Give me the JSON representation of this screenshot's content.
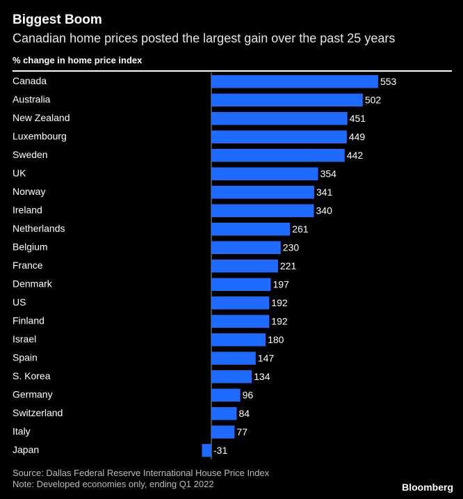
{
  "header": {
    "title": "Biggest Boom",
    "subtitle": "Canadian home prices posted the largest gain over the past 25 years",
    "axis_label": "% change in home price index"
  },
  "footer": {
    "source": "Source: Dallas Federal Reserve International House Price Index",
    "note": "Note: Developed economies only, ending Q1 2022",
    "brand": "Bloomberg"
  },
  "colors": {
    "bar": "#1f6bff",
    "background": "#000000",
    "text": "#ffffff"
  },
  "chart_data": {
    "type": "bar",
    "orientation": "horizontal",
    "title": "Biggest Boom",
    "subtitle": "Canadian home prices posted the largest gain over the past 25 years",
    "xlabel": "% change in home price index",
    "categories": [
      "Canada",
      "Australia",
      "New Zealand",
      "Luxembourg",
      "Sweden",
      "UK",
      "Norway",
      "Ireland",
      "Netherlands",
      "Belgium",
      "France",
      "Denmark",
      "US",
      "Finland",
      "Israel",
      "Spain",
      "S. Korea",
      "Germany",
      "Switzerland",
      "Italy",
      "Japan"
    ],
    "values": [
      553,
      502,
      451,
      449,
      442,
      354,
      341,
      340,
      261,
      230,
      221,
      197,
      192,
      192,
      180,
      147,
      134,
      96,
      84,
      77,
      -31
    ],
    "labels": [
      "553",
      "502",
      "451",
      "449",
      "442",
      "354",
      "341",
      "340",
      "261",
      "230",
      "221",
      "197",
      "192",
      "192",
      "180",
      "147",
      "134",
      "96",
      "84",
      "77",
      "-31"
    ],
    "grid": false,
    "legend": "none"
  }
}
